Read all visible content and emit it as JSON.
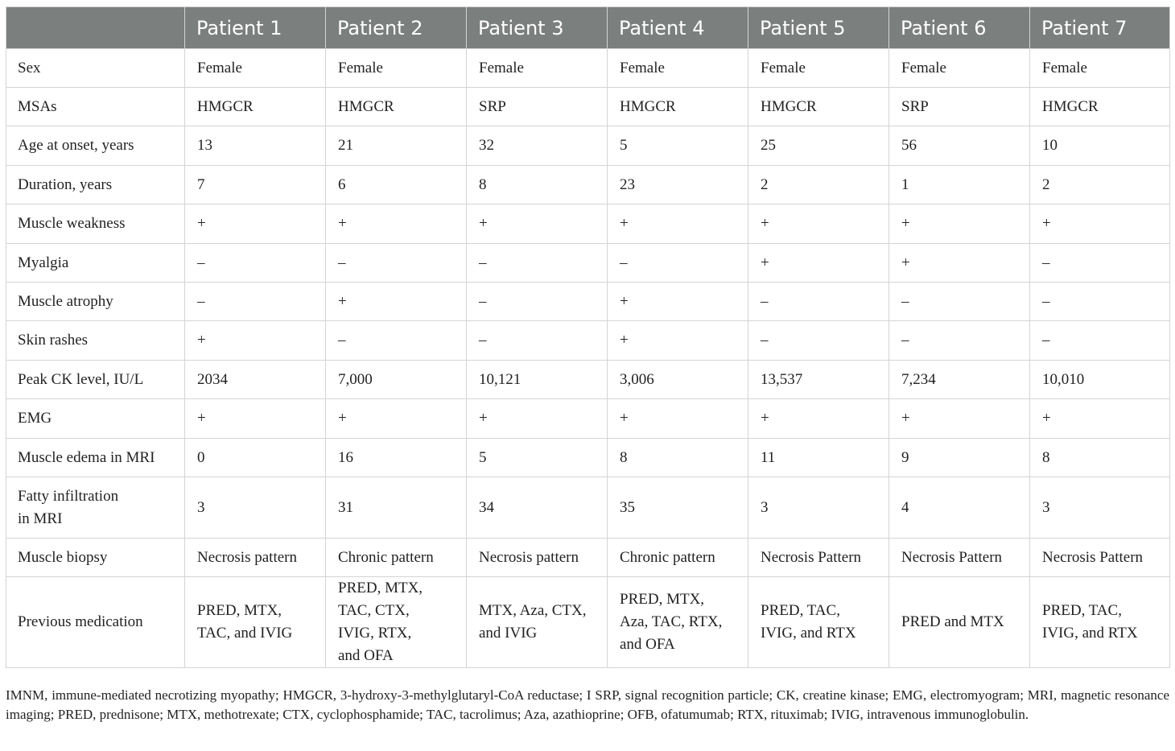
{
  "columns": [
    "",
    "Patient 1",
    "Patient 2",
    "Patient 3",
    "Patient 4",
    "Patient 5",
    "Patient 6",
    "Patient 7"
  ],
  "rows": [
    {
      "label": "Sex",
      "values": [
        "Female",
        "Female",
        "Female",
        "Female",
        "Female",
        "Female",
        "Female"
      ]
    },
    {
      "label": "MSAs",
      "values": [
        "HMGCR",
        "HMGCR",
        "SRP",
        "HMGCR",
        "HMGCR",
        "SRP",
        "HMGCR"
      ]
    },
    {
      "label": "Age at onset, years",
      "values": [
        "13",
        "21",
        "32",
        "5",
        "25",
        "56",
        "10"
      ]
    },
    {
      "label": "Duration, years",
      "values": [
        "7",
        "6",
        "8",
        "23",
        "2",
        "1",
        "2"
      ]
    },
    {
      "label": "Muscle weakness",
      "values": [
        "+",
        "+",
        "+",
        "+",
        "+",
        "+",
        "+"
      ]
    },
    {
      "label": "Myalgia",
      "values": [
        "–",
        "–",
        "–",
        "–",
        "+",
        "+",
        "–"
      ]
    },
    {
      "label": "Muscle atrophy",
      "values": [
        "–",
        "+",
        "–",
        "+",
        "–",
        "–",
        "–"
      ]
    },
    {
      "label": "Skin rashes",
      "values": [
        "+",
        "–",
        "–",
        "+",
        "–",
        "–",
        "–"
      ]
    },
    {
      "label": "Peak CK level, IU/L",
      "values": [
        "2034",
        "7,000",
        "10,121",
        "3,006",
        "13,537",
        "7,234",
        "10,010"
      ]
    },
    {
      "label": "EMG",
      "values": [
        "+",
        "+",
        "+",
        "+",
        "+",
        "+",
        "+"
      ]
    },
    {
      "label": "Muscle edema in MRI",
      "values": [
        "0",
        "16",
        "5",
        "8",
        "11",
        "9",
        "8"
      ]
    },
    {
      "label": "Fatty infiltration\nin MRI",
      "values": [
        "3",
        "31",
        "34",
        "35",
        "3",
        "4",
        "3"
      ]
    },
    {
      "label": "Muscle biopsy",
      "values": [
        "Necrosis pattern",
        "Chronic pattern",
        "Necrosis pattern",
        "Chronic pattern",
        "Necrosis Pattern",
        "Necrosis Pattern",
        "Necrosis Pattern"
      ]
    },
    {
      "label": "Previous medication",
      "values": [
        "PRED, MTX,\nTAC, and IVIG",
        "PRED, MTX,\nTAC, CTX,\nIVIG, RTX,\nand OFA",
        "MTX, Aza, CTX,\nand IVIG",
        "PRED, MTX,\nAza, TAC, RTX,\nand OFA",
        "PRED, TAC,\nIVIG, and RTX",
        "PRED and MTX",
        "PRED, TAC,\nIVIG, and RTX"
      ]
    }
  ],
  "footnote": "IMNM, immune-mediated necrotizing myopathy; HMGCR, 3-hydroxy-3-methylglutaryl-CoA reductase; I SRP, signal recognition particle; CK, creatine kinase; EMG, electromyogram; MRI, magnetic resonance imaging; PRED, prednisone; MTX, methotrexate; CTX, cyclophosphamide; TAC, tacrolimus; Aza, azathioprine; OFB, ofatumumab; RTX, rituximab; IVIG, intravenous immunoglobulin."
}
